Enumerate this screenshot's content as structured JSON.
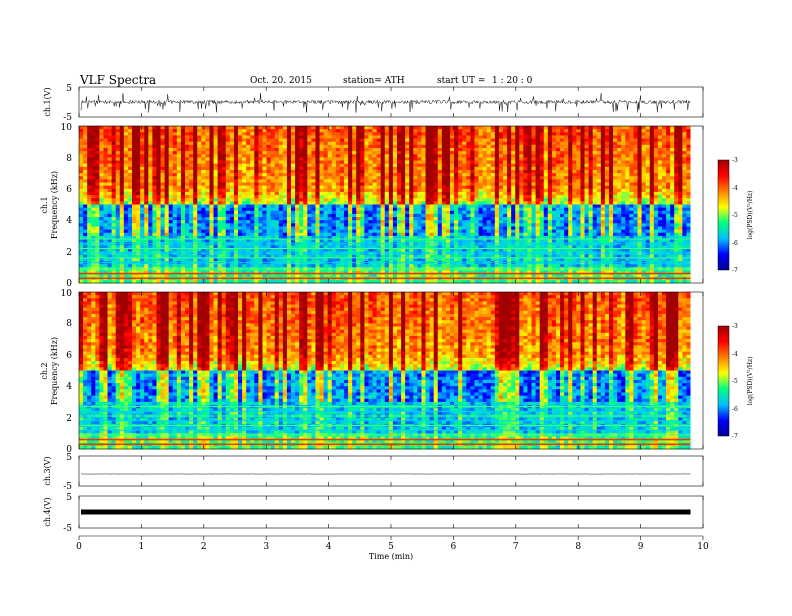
{
  "header": {
    "title": "VLF  Spectra",
    "date": "Oct. 20. 2015",
    "station": "station= ATH",
    "start_label": "start  UT  =",
    "start_value": "1  : 20 : 0"
  },
  "chart_data": [
    {
      "type": "line",
      "panel": "ch1-waveform",
      "ylabel": "ch.1(V)",
      "ylim": [
        -5,
        5
      ],
      "yticks": [
        "5",
        "-5"
      ],
      "baseline_v": 0.0,
      "noise_amplitude_v": 1.2,
      "spikes": "frequent downward spikes to about -3 V",
      "x_range_min": [
        0,
        9.8
      ]
    },
    {
      "type": "heatmap",
      "panel": "ch1-spectrogram",
      "ylabel": "ch.1\nFrequency (kHz)",
      "ylabel_line1": "ch.1",
      "ylabel_line2": "Frequency  (kHz)",
      "ylim": [
        0,
        10
      ],
      "yticks": [
        "0",
        "2",
        "4",
        "6",
        "8",
        "10"
      ],
      "x_range_min": [
        0,
        9.8
      ],
      "colorbar": {
        "label": "log(PSD)(V²/Hz)",
        "range": [
          -7,
          -3
        ],
        "ticks": [
          "-3",
          "-4",
          "-5",
          "-6",
          "-7"
        ],
        "colormap": [
          "#000090",
          "#0000ff",
          "#00c0ff",
          "#00ff80",
          "#ffff00",
          "#ff8000",
          "#ff0000",
          "#a00000"
        ]
      },
      "structure": {
        "strong_sferics_band_khz": [
          6,
          10
        ],
        "dark_blue_band_khz": [
          3,
          5
        ],
        "horizontal_lines_khz": [
          0.3,
          0.6,
          0.9,
          1.3,
          1.6,
          1.9,
          2.2,
          2.5,
          2.8
        ]
      }
    },
    {
      "type": "heatmap",
      "panel": "ch2-spectrogram",
      "ylabel": "ch.2\nFrequency (kHz)",
      "ylabel_line1": "ch.2",
      "ylabel_line2": "Frequency  (kHz)",
      "ylim": [
        0,
        10
      ],
      "yticks": [
        "0",
        "2",
        "4",
        "6",
        "8",
        "10"
      ],
      "x_range_min": [
        0,
        9.8
      ],
      "colorbar": {
        "label": "log(PSD)(V²/Hz)",
        "range": [
          -7,
          -3
        ],
        "ticks": [
          "-3",
          "-4",
          "-5",
          "-6",
          "-7"
        ],
        "colormap": [
          "#000090",
          "#0000ff",
          "#00c0ff",
          "#00ff80",
          "#ffff00",
          "#ff8000",
          "#ff0000",
          "#a00000"
        ]
      },
      "structure": {
        "strong_sferics_band_khz": [
          6,
          10
        ],
        "dark_blue_band_khz": [
          3,
          5
        ],
        "horizontal_lines_khz": [
          0.3,
          0.6,
          0.9,
          1.2,
          1.5,
          1.8,
          2.1,
          2.4,
          2.7
        ]
      }
    },
    {
      "type": "line",
      "panel": "ch3-waveform",
      "ylabel": "ch.3(V)",
      "ylim": [
        -5,
        5
      ],
      "yticks": [
        "5",
        "-5"
      ],
      "baseline_v": -1.0,
      "noise_amplitude_v": 0.1,
      "x_range_min": [
        0,
        9.8
      ]
    },
    {
      "type": "line",
      "panel": "ch4-waveform",
      "ylabel": "ch.4(V)",
      "ylim": [
        -5,
        5
      ],
      "yticks": [
        "5",
        "-5"
      ],
      "baseline_v": 0.0,
      "noise_amplitude_v": 0.3,
      "x_range_min": [
        0,
        9.8
      ]
    }
  ],
  "x_axis": {
    "label": "Time  (min)",
    "range": [
      0,
      10
    ],
    "ticks": [
      "0",
      "1",
      "2",
      "3",
      "4",
      "5",
      "6",
      "7",
      "8",
      "9",
      "10"
    ]
  }
}
